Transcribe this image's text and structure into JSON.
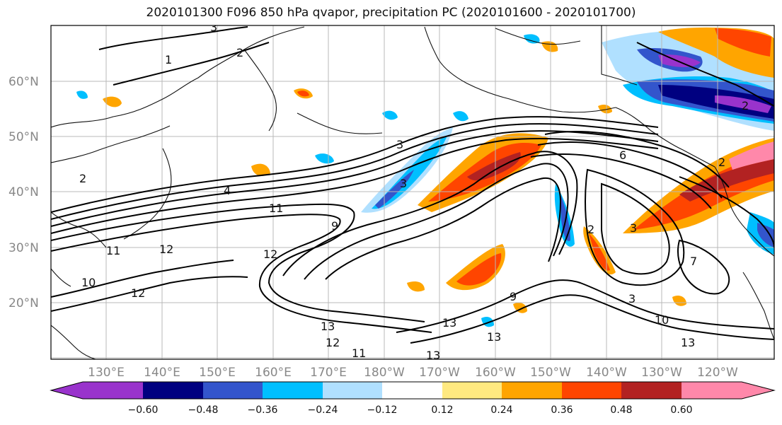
{
  "title": "2020101300 F096 850 hPa qvapor, precipitation PC (2020101600 - 2020101700)",
  "lat_labels": [
    "60°N",
    "50°N",
    "40°N",
    "30°N",
    "20°N"
  ],
  "lon_labels": [
    "130°E",
    "140°E",
    "150°E",
    "160°E",
    "170°E",
    "180°W",
    "170°W",
    "160°W",
    "150°W",
    "140°W",
    "130°W",
    "120°W"
  ],
  "colorbar": {
    "colors": [
      "#9933cc",
      "#000080",
      "#3355cc",
      "#00bfff",
      "#b0e0ff",
      "#ffffff",
      "#ffe980",
      "#ffa500",
      "#ff4500",
      "#b22222",
      "#ff88aa"
    ],
    "tick_labels": [
      "−0.60",
      "−0.48",
      "−0.36",
      "−0.24",
      "−0.12",
      "0.12",
      "0.24",
      "0.36",
      "0.48",
      "0.60"
    ]
  },
  "contour_labels": [
    "3",
    "2",
    "1",
    "2",
    "3",
    "3",
    "6",
    "4",
    "11",
    "9",
    "12",
    "11",
    "12",
    "12",
    "13",
    "12",
    "11",
    "13",
    "9",
    "13",
    "13",
    "3",
    "13",
    "10",
    "3",
    "2",
    "2",
    "2",
    "7",
    "10"
  ]
}
